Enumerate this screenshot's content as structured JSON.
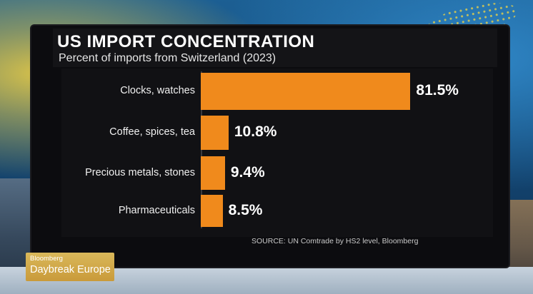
{
  "chart_data": {
    "type": "bar",
    "orientation": "horizontal",
    "title": "US IMPORT CONCENTRATION",
    "subtitle": "Percent of imports from Switzerland (2023)",
    "categories": [
      "Clocks, watches",
      "Coffee, spices, tea",
      "Precious metals, stones",
      "Pharmaceuticals"
    ],
    "values": [
      81.5,
      10.8,
      9.4,
      8.5
    ],
    "value_labels": [
      "81.5%",
      "10.8%",
      "9.4%",
      "8.5%"
    ],
    "xlim": [
      0,
      100
    ],
    "bar_color": "#f08a1c",
    "grid": false,
    "legend": "none",
    "source": "SOURCE: UN Comtrade by HS2 level, Bloomberg"
  },
  "broadcast": {
    "brand": "Bloomberg",
    "show": "Daybreak Europe"
  }
}
